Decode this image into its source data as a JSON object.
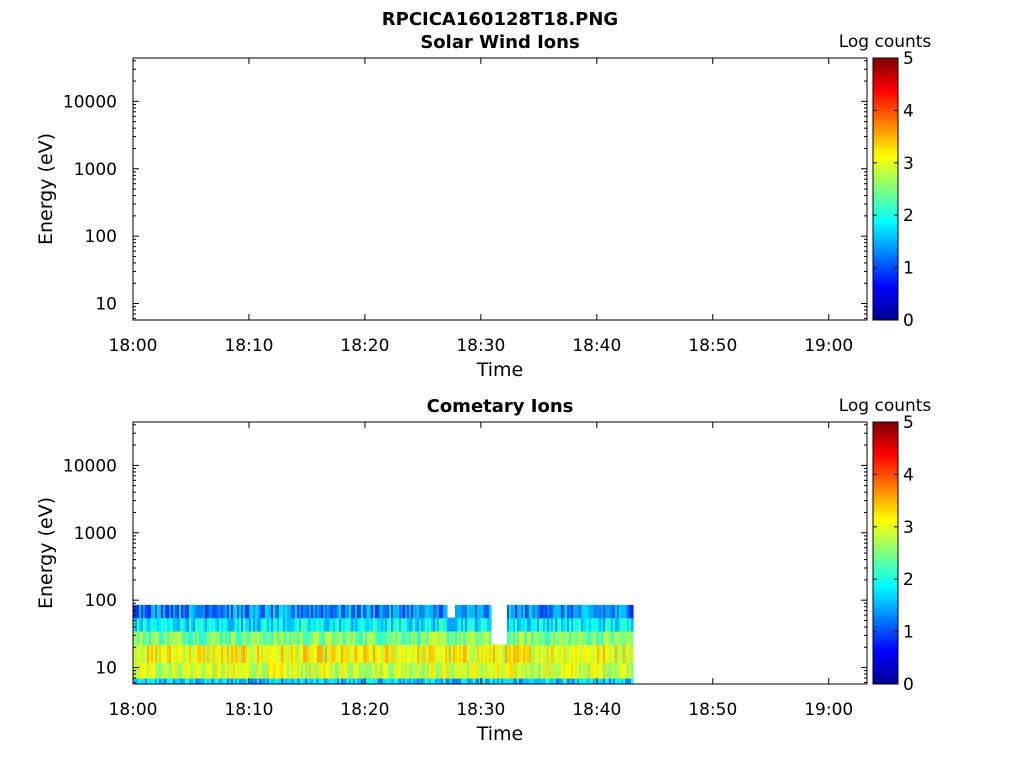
{
  "figure": {
    "title": "RPCICA160128T18.PNG"
  },
  "chart_data": [
    {
      "type": "heatmap",
      "title": "Solar Wind Ions",
      "xlabel": "Time",
      "ylabel": "Energy (eV)",
      "x_tick_labels": [
        "18:00",
        "18:10",
        "18:20",
        "18:30",
        "18:40",
        "18:50",
        "19:00"
      ],
      "x_ticks_minutes": [
        0,
        10,
        20,
        30,
        40,
        50,
        60
      ],
      "xlim_minutes": [
        0,
        63.3
      ],
      "y_scale": "log",
      "y_tick_labels": [
        "10",
        "100",
        "1000",
        "10000"
      ],
      "y_ticks": [
        10,
        100,
        1000,
        10000
      ],
      "ylim": [
        5.7,
        44000
      ],
      "colorbar": {
        "label": "Log counts",
        "min": 0,
        "max": 5,
        "ticks": [
          "0",
          "1",
          "2",
          "3",
          "4",
          "5"
        ],
        "colormap": "jet"
      },
      "data": "empty"
    },
    {
      "type": "heatmap",
      "title": "Cometary Ions",
      "xlabel": "Time",
      "ylabel": "Energy (eV)",
      "x_tick_labels": [
        "18:00",
        "18:10",
        "18:20",
        "18:30",
        "18:40",
        "18:50",
        "19:00"
      ],
      "x_ticks_minutes": [
        0,
        10,
        20,
        30,
        40,
        50,
        60
      ],
      "xlim_minutes": [
        0,
        63.3
      ],
      "y_scale": "log",
      "y_tick_labels": [
        "10",
        "100",
        "1000",
        "10000"
      ],
      "y_ticks": [
        10,
        100,
        1000,
        10000
      ],
      "ylim": [
        5.7,
        44000
      ],
      "colorbar": {
        "label": "Log counts",
        "min": 0,
        "max": 5,
        "ticks": [
          "0",
          "1",
          "2",
          "3",
          "4",
          "5"
        ],
        "colormap": "jet"
      },
      "data_extent": {
        "time_minutes": [
          0,
          43
        ],
        "energy_ev": [
          5.7,
          85
        ]
      },
      "energy_bands": [
        {
          "energy_ev": [
            5.7,
            7
          ],
          "log_counts": 1.6
        },
        {
          "energy_ev": [
            7,
            12
          ],
          "log_counts": 2.9
        },
        {
          "energy_ev": [
            12,
            22
          ],
          "log_counts": 3.1
        },
        {
          "energy_ev": [
            22,
            35
          ],
          "log_counts": 2.5
        },
        {
          "energy_ev": [
            35,
            55
          ],
          "log_counts": 1.8
        },
        {
          "energy_ev": [
            55,
            85
          ],
          "log_counts": 1.3
        }
      ],
      "no_data_gaps": [
        {
          "time_minutes": [
            27,
            27.7
          ],
          "energy_ev": [
            45,
            85
          ]
        },
        {
          "time_minutes": [
            30.8,
            32.2
          ],
          "energy_ev": [
            25,
            85
          ]
        }
      ]
    }
  ]
}
